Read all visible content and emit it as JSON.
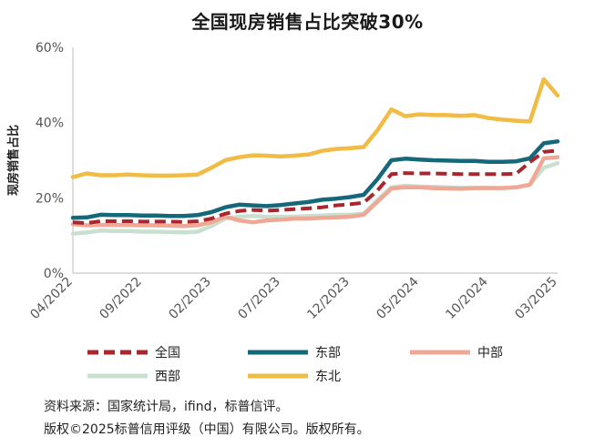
{
  "chart_data": {
    "type": "line",
    "title": "全国现房销售占比突破30%",
    "ylabel": "现房销售占比",
    "xlabel": "",
    "ylim": [
      0,
      60
    ],
    "yticks": [
      "0%",
      "20%",
      "40%",
      "60%"
    ],
    "xtick_labels": [
      "04/2022",
      "09/2022",
      "02/2023",
      "07/2023",
      "12/2023",
      "05/2024",
      "10/2024",
      "03/2025"
    ],
    "x": [
      "04/2022",
      "05/2022",
      "06/2022",
      "07/2022",
      "08/2022",
      "09/2022",
      "10/2022",
      "11/2022",
      "12/2022",
      "01/2023",
      "02/2023",
      "03/2023",
      "04/2023",
      "05/2023",
      "06/2023",
      "07/2023",
      "08/2023",
      "09/2023",
      "10/2023",
      "11/2023",
      "12/2023",
      "01/2024",
      "02/2024",
      "03/2024",
      "04/2024",
      "05/2024",
      "06/2024",
      "07/2024",
      "08/2024",
      "09/2024",
      "10/2024",
      "11/2024",
      "12/2024",
      "01/2025",
      "02/2025",
      "03/2025"
    ],
    "grid": false,
    "legend_position": "bottom",
    "series": [
      {
        "name": "全国",
        "color": "#a8262e",
        "style": "dashed",
        "values": [
          13.5,
          13.3,
          13.8,
          13.8,
          13.8,
          13.7,
          13.7,
          13.7,
          13.6,
          13.8,
          14.5,
          15.8,
          16.5,
          16.8,
          16.6,
          16.8,
          17.0,
          17.2,
          17.5,
          18.0,
          18.3,
          18.7,
          22.0,
          26.3,
          26.6,
          26.5,
          26.5,
          26.4,
          26.3,
          26.3,
          26.3,
          26.3,
          26.4,
          29.5,
          32.2,
          32.6
        ]
      },
      {
        "name": "东部",
        "color": "#14687a",
        "style": "solid",
        "values": [
          14.7,
          14.8,
          15.5,
          15.4,
          15.4,
          15.3,
          15.3,
          15.2,
          15.2,
          15.4,
          16.2,
          17.5,
          18.2,
          18.0,
          17.8,
          18.1,
          18.5,
          18.9,
          19.5,
          19.8,
          20.2,
          20.8,
          25.0,
          30.0,
          30.4,
          30.2,
          30.0,
          29.9,
          29.8,
          29.8,
          29.6,
          29.6,
          29.7,
          30.5,
          34.5,
          35.0
        ]
      },
      {
        "name": "中部",
        "color": "#f0a896",
        "style": "solid",
        "values": [
          13.0,
          12.7,
          12.8,
          12.8,
          12.8,
          12.7,
          12.7,
          12.6,
          12.5,
          12.7,
          13.5,
          15.0,
          14.0,
          13.5,
          14.0,
          14.2,
          14.5,
          14.5,
          14.7,
          14.8,
          15.0,
          15.5,
          19.0,
          22.5,
          22.8,
          22.8,
          22.6,
          22.5,
          22.4,
          22.6,
          22.6,
          22.6,
          22.8,
          23.5,
          30.5,
          30.8
        ]
      },
      {
        "name": "西部",
        "color": "#c9e0d0",
        "style": "solid",
        "values": [
          10.5,
          10.8,
          11.3,
          11.2,
          11.2,
          11.0,
          11.0,
          10.9,
          10.8,
          11.0,
          12.5,
          14.5,
          15.0,
          15.2,
          15.0,
          15.0,
          15.0,
          15.2,
          15.3,
          15.5,
          15.5,
          15.8,
          19.5,
          22.8,
          23.2,
          23.0,
          22.9,
          22.8,
          22.7,
          22.7,
          22.7,
          22.6,
          22.8,
          23.5,
          28.0,
          29.2
        ]
      },
      {
        "name": "东北",
        "color": "#f0bc45",
        "style": "solid",
        "values": [
          25.5,
          26.5,
          26.0,
          26.0,
          26.2,
          26.0,
          25.9,
          25.9,
          26.0,
          26.2,
          28.0,
          30.0,
          30.8,
          31.3,
          31.2,
          31.0,
          31.2,
          31.5,
          32.5,
          33.0,
          33.2,
          33.5,
          38.0,
          43.5,
          41.7,
          42.2,
          42.0,
          42.0,
          41.8,
          42.0,
          41.2,
          40.8,
          40.5,
          40.3,
          51.5,
          47.2
        ]
      }
    ]
  },
  "footer": {
    "source": "资料来源：国家统计局，ifind，标普信评。",
    "copyright": "版权©2025标普信用评级（中国）有限公司。版权所有。"
  }
}
